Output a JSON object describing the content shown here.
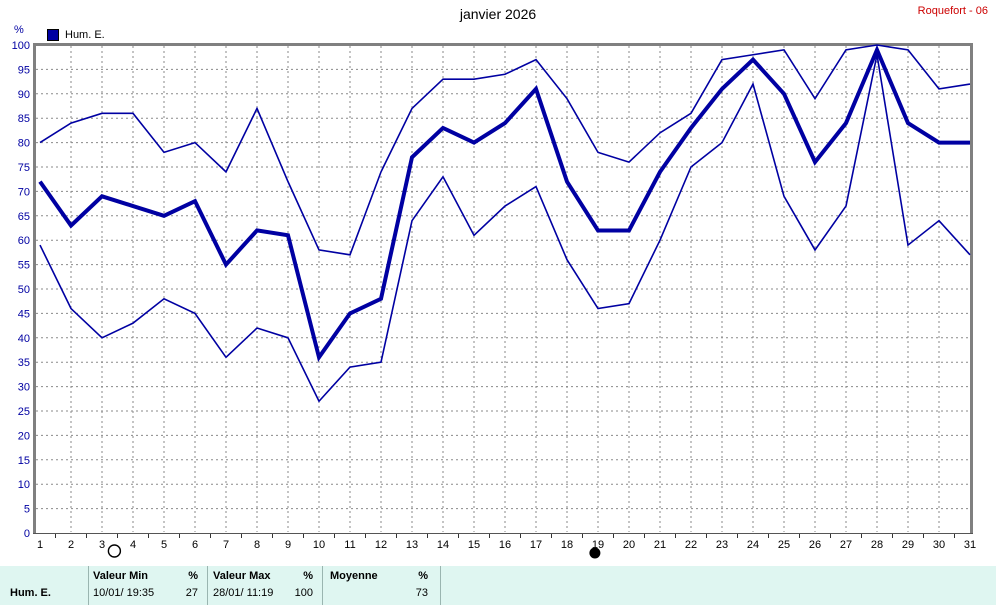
{
  "header": {
    "title": "janvier 2026",
    "station": "Roquefort - 06"
  },
  "legend": {
    "label": "Hum. E."
  },
  "y_axis": {
    "unit": "%",
    "tick_labels": [
      "0",
      "5",
      "10",
      "15",
      "20",
      "25",
      "30",
      "35",
      "40",
      "45",
      "50",
      "55",
      "60",
      "65",
      "70",
      "75",
      "80",
      "85",
      "90",
      "95",
      "100"
    ]
  },
  "x_axis": {
    "tick_labels": [
      "1",
      "2",
      "3",
      "4",
      "5",
      "6",
      "7",
      "8",
      "9",
      "10",
      "11",
      "12",
      "13",
      "14",
      "15",
      "16",
      "17",
      "18",
      "19",
      "20",
      "21",
      "22",
      "23",
      "24",
      "25",
      "26",
      "27",
      "28",
      "29",
      "30",
      "31"
    ]
  },
  "chart_data": {
    "type": "line",
    "title": "janvier 2026",
    "ylabel": "%",
    "ylim": [
      0,
      100
    ],
    "y_tick_step": 5,
    "grid": "dashed",
    "x": [
      1,
      2,
      3,
      4,
      5,
      6,
      7,
      8,
      9,
      10,
      11,
      12,
      13,
      14,
      15,
      16,
      17,
      18,
      19,
      20,
      21,
      22,
      23,
      24,
      25,
      26,
      27,
      28,
      29,
      30,
      31
    ],
    "series": [
      {
        "name": "max",
        "values": [
          80,
          84,
          86,
          86,
          78,
          80,
          74,
          87,
          72,
          58,
          57,
          74,
          87,
          93,
          93,
          94,
          97,
          89,
          78,
          76,
          82,
          86,
          97,
          98,
          99,
          89,
          99,
          100,
          99,
          91,
          92
        ],
        "width": 1.6
      },
      {
        "name": "moyenne",
        "values": [
          72,
          63,
          69,
          67,
          65,
          68,
          55,
          62,
          61,
          36,
          45,
          48,
          77,
          83,
          80,
          84,
          91,
          72,
          62,
          62,
          74,
          83,
          91,
          97,
          90,
          76,
          84,
          99,
          84,
          80,
          80
        ],
        "width": 4
      },
      {
        "name": "min",
        "values": [
          59,
          46,
          40,
          43,
          48,
          45,
          36,
          42,
          40,
          27,
          34,
          35,
          64,
          73,
          61,
          67,
          71,
          56,
          46,
          47,
          60,
          75,
          80,
          92,
          69,
          58,
          67,
          98,
          59,
          64,
          57
        ],
        "width": 1.6
      }
    ],
    "line_color": "#0000a2",
    "legend_position": "top-left"
  },
  "moon_markers": [
    {
      "shape": "open-circle",
      "day": 3.4
    },
    {
      "shape": "filled-circle",
      "day": 18.9
    }
  ],
  "summary_table": {
    "row_label": "Hum. E.",
    "columns": [
      {
        "header": "Valeur Min",
        "unit": "%",
        "date": "10/01/ 19:35",
        "value": "27"
      },
      {
        "header": "Valeur Max",
        "unit": "%",
        "date": "28/01/ 11:19",
        "value": "100"
      },
      {
        "header": "Moyenne",
        "unit": "%",
        "date": "",
        "value": "73"
      }
    ]
  },
  "colors": {
    "line": "#0000a2",
    "y_labels": "#0000a2",
    "x_labels": "#000000",
    "grid": "#8a8a8a",
    "border": "#808080",
    "station": "#cc0000",
    "table_bg": "#dff6f1"
  }
}
